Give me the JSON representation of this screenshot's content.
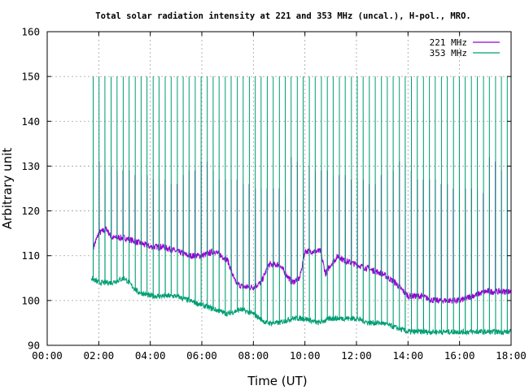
{
  "chart_data": {
    "type": "line",
    "title": "Total solar radiation intensity at 221 and 353 MHz (uncal.), H-pol., MRO.",
    "xlabel": "Time (UT)",
    "ylabel": "Arbitrary unit",
    "xlim": [
      0,
      18
    ],
    "ylim": [
      90,
      160
    ],
    "x_ticks": [
      0,
      2,
      4,
      6,
      8,
      10,
      12,
      14,
      16,
      18
    ],
    "x_tick_labels": [
      "00:00",
      "02:00",
      "04:00",
      "06:00",
      "08:00",
      "10:00",
      "12:00",
      "14:00",
      "16:00",
      "18:00"
    ],
    "y_ticks": [
      90,
      100,
      110,
      120,
      130,
      140,
      150,
      160
    ],
    "y_tick_labels": [
      "90",
      "100",
      "110",
      "120",
      "130",
      "140",
      "150",
      "160"
    ],
    "grid": true,
    "legend": "top-right",
    "series": [
      {
        "name": "221 MHz",
        "color": "#9400d3",
        "x": [
          1.8,
          2.0,
          2.3,
          2.5,
          3.0,
          3.5,
          4.0,
          4.5,
          5.0,
          5.5,
          6.0,
          6.5,
          7.0,
          7.3,
          7.6,
          8.0,
          8.3,
          8.6,
          9.0,
          9.5,
          9.8,
          10.0,
          10.3,
          10.6,
          10.8,
          11.0,
          11.3,
          11.5,
          12.0,
          12.5,
          13.0,
          13.5,
          14.0,
          14.5,
          15.0,
          15.5,
          16.0,
          16.5,
          17.0,
          17.5,
          18.0
        ],
        "values": [
          112,
          115,
          116,
          114,
          114,
          113,
          112,
          112,
          111,
          110,
          110,
          111,
          109,
          104,
          103,
          103,
          104,
          108,
          108,
          104,
          105,
          111,
          111,
          111,
          106,
          108,
          110,
          109,
          108,
          107,
          106,
          104,
          101,
          101,
          100,
          100,
          100,
          101,
          102,
          102,
          102
        ],
        "spike_peaks": [
          132,
          131,
          129,
          130,
          129,
          129,
          129,
          128,
          128,
          128,
          127,
          127,
          127,
          126,
          126,
          128,
          129,
          129,
          131,
          131,
          129,
          127,
          127,
          127,
          127,
          126,
          126,
          125,
          125,
          125,
          125,
          125,
          124
        ]
      },
      {
        "name": "353 MHz",
        "color": "#009e73",
        "x": [
          1.7,
          2.0,
          2.5,
          3.0,
          3.5,
          4.0,
          4.5,
          5.0,
          5.5,
          6.0,
          6.5,
          7.0,
          7.5,
          8.0,
          8.5,
          9.0,
          9.5,
          10.0,
          10.5,
          11.0,
          11.5,
          12.0,
          12.5,
          13.0,
          13.5,
          14.0,
          14.5,
          15.0,
          15.5,
          16.0,
          16.5,
          17.0,
          17.5,
          18.0
        ],
        "values": [
          105,
          104,
          104,
          105,
          102,
          101,
          101,
          101,
          100,
          99,
          98,
          97,
          98,
          97,
          95,
          95,
          96,
          96,
          95,
          96,
          96,
          96,
          95,
          95,
          94,
          93,
          93,
          93,
          93,
          93,
          93,
          93,
          93,
          93
        ],
        "spike_peak": 150
      }
    ]
  }
}
